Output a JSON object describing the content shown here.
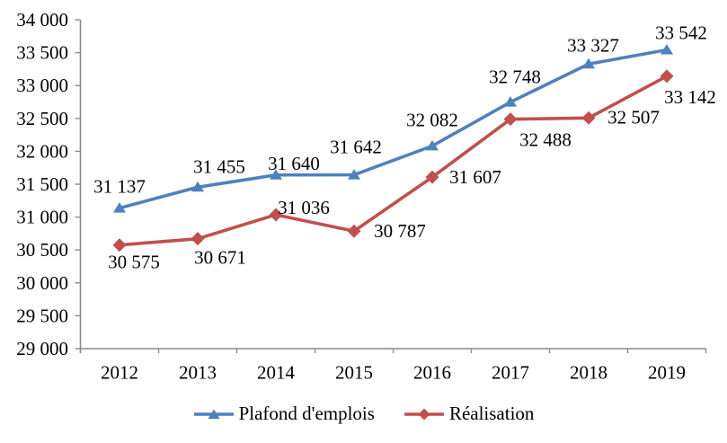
{
  "chart_data": {
    "type": "line",
    "title": "",
    "xlabel": "",
    "ylabel": "",
    "categories": [
      "2012",
      "2013",
      "2014",
      "2015",
      "2016",
      "2017",
      "2018",
      "2019"
    ],
    "series": [
      {
        "name": "Plafond d'emplois",
        "color": "#4F81BD",
        "marker": "triangle",
        "values": [
          31137,
          31455,
          31640,
          31642,
          32082,
          32748,
          33327,
          33542
        ],
        "data_labels": [
          "31 137",
          "31 455",
          "31 640",
          "31 642",
          "32 082",
          "32 748",
          "33 327",
          "33 542"
        ],
        "label_offsets": [
          [
            0,
            -24
          ],
          [
            24,
            -23
          ],
          [
            20,
            -13
          ],
          [
            2,
            -31
          ],
          [
            0,
            -29
          ],
          [
            5,
            -28
          ],
          [
            5,
            -21
          ],
          [
            16,
            -19
          ]
        ]
      },
      {
        "name": "Réalisation",
        "color": "#C0504D",
        "marker": "diamond",
        "values": [
          30575,
          30671,
          31036,
          30787,
          31607,
          32488,
          32507,
          33142
        ],
        "data_labels": [
          "30 575",
          "30 671",
          "31 036",
          "30 787",
          "31 607",
          "32 488",
          "32 507",
          "33 142"
        ],
        "label_offsets": [
          [
            16,
            19
          ],
          [
            25,
            21
          ],
          [
            31,
            -8
          ],
          [
            51,
            0
          ],
          [
            48,
            0
          ],
          [
            39,
            23
          ],
          [
            50,
            -1
          ],
          [
            26,
            23
          ]
        ]
      }
    ],
    "ylim": [
      29000,
      34000
    ],
    "ytick_step": 500,
    "ytick_labels": [
      "29 000",
      "29 500",
      "30 000",
      "30 500",
      "31 000",
      "31 500",
      "32 000",
      "32 500",
      "33 000",
      "33 500",
      "34 000"
    ],
    "grid": false,
    "legend_position": "bottom",
    "axis_color": "#8C8C8C",
    "text_color": "#000000",
    "background_color": "#FFFFFF"
  }
}
